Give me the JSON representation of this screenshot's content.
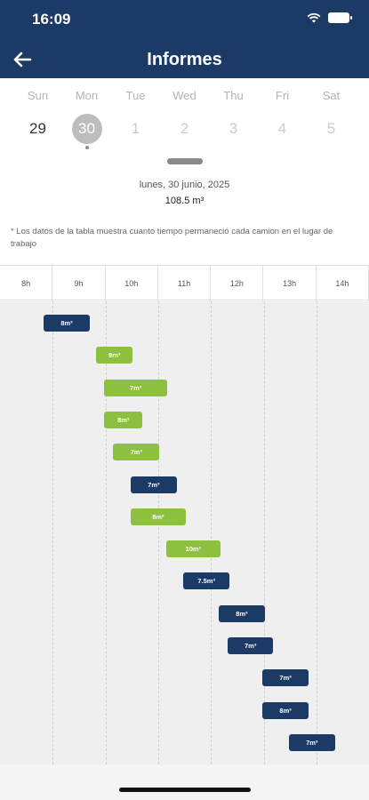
{
  "status": {
    "time": "16:09"
  },
  "header": {
    "title": "Informes"
  },
  "week": [
    {
      "dow": "Sun",
      "num": "29",
      "state": "past"
    },
    {
      "dow": "Mon",
      "num": "30",
      "state": "selected"
    },
    {
      "dow": "Tue",
      "num": "1",
      "state": "future"
    },
    {
      "dow": "Wed",
      "num": "2",
      "state": "future"
    },
    {
      "dow": "Thu",
      "num": "3",
      "state": "future"
    },
    {
      "dow": "Fri",
      "num": "4",
      "state": "future"
    },
    {
      "dow": "Sat",
      "num": "5",
      "state": "future"
    }
  ],
  "summary": {
    "date": "lunes, 30 junio, 2025",
    "total": "108.5 m³",
    "note": "*  Los datos de la tabla muestra cuanto tiempo permaneció cada camion en el lugar de trabajo"
  },
  "timeline": {
    "hours": [
      "8h",
      "9h",
      "10h",
      "11h",
      "12h",
      "13h",
      "14h"
    ],
    "start_hour": 8,
    "bars": [
      {
        "label": "8m³",
        "start": 8.83,
        "end": 9.7,
        "color": "blue"
      },
      {
        "label": "9m³",
        "start": 9.82,
        "end": 10.52,
        "color": "green"
      },
      {
        "label": "7m³",
        "start": 9.98,
        "end": 11.17,
        "color": "green"
      },
      {
        "label": "8m³",
        "start": 9.98,
        "end": 10.7,
        "color": "green"
      },
      {
        "label": "7m³",
        "start": 10.15,
        "end": 11.02,
        "color": "green"
      },
      {
        "label": "7m³",
        "start": 10.48,
        "end": 11.35,
        "color": "blue"
      },
      {
        "label": "8m³",
        "start": 10.48,
        "end": 11.52,
        "color": "green"
      },
      {
        "label": "10m³",
        "start": 11.15,
        "end": 12.18,
        "color": "green"
      },
      {
        "label": "7.5m³",
        "start": 11.48,
        "end": 12.35,
        "color": "blue"
      },
      {
        "label": "8m³",
        "start": 12.15,
        "end": 13.02,
        "color": "blue"
      },
      {
        "label": "7m³",
        "start": 12.32,
        "end": 13.18,
        "color": "blue"
      },
      {
        "label": "7m³",
        "start": 12.98,
        "end": 13.85,
        "color": "blue"
      },
      {
        "label": "8m³",
        "start": 12.98,
        "end": 13.85,
        "color": "blue"
      },
      {
        "label": "7m³",
        "start": 13.48,
        "end": 14.35,
        "color": "blue"
      }
    ]
  },
  "colors": {
    "primary": "#1b3a66",
    "accent": "#8dc03e"
  },
  "icons": {
    "back": "back-arrow-icon",
    "wifi": "wifi-icon",
    "battery": "battery-icon"
  }
}
